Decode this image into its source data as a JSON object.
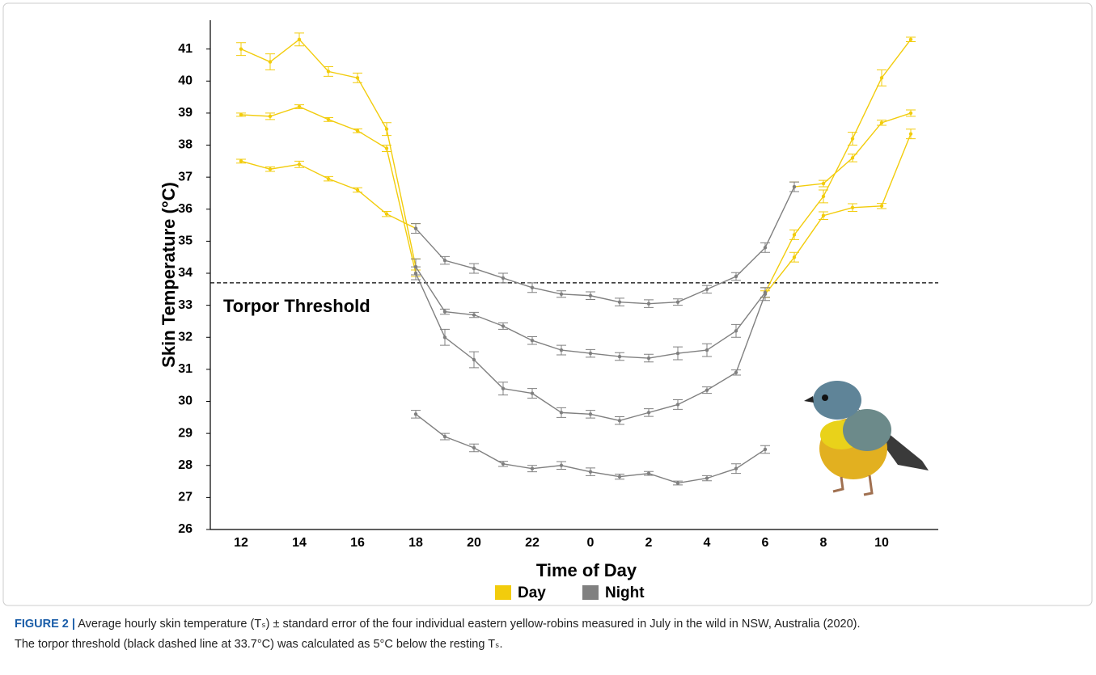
{
  "chart_data": {
    "type": "line",
    "xlabel": "Time of Day",
    "ylabel": "Skin Temperature (°C)",
    "categories": [
      "12",
      null,
      "14",
      null,
      "16",
      null,
      "18",
      null,
      "20",
      null,
      "22",
      null,
      "0",
      null,
      "2",
      null,
      "4",
      null,
      "6",
      null,
      "8",
      null,
      "10",
      null
    ],
    "ylim": [
      26,
      41.9
    ],
    "yticks": [
      26,
      27,
      28,
      29,
      30,
      31,
      32,
      33,
      34,
      35,
      36,
      37,
      38,
      39,
      40,
      41
    ],
    "threshold": 33.7,
    "threshold_label": "Torpor Threshold",
    "series": [
      {
        "name": "Day",
        "color": "#f2cc0c",
        "lines": [
          {
            "values": [
              41.0,
              40.6,
              41.3,
              40.3,
              40.1,
              38.5,
              34.2,
              null,
              null,
              null,
              null,
              null,
              null,
              null,
              null,
              null,
              null,
              null,
              null,
              null,
              null,
              null,
              null,
              null
            ],
            "errors": [
              0.2,
              0.25,
              0.2,
              0.15,
              0.15,
              0.2,
              0.25,
              null,
              null,
              null,
              null,
              null,
              null,
              null,
              null,
              null,
              null,
              null,
              null,
              null,
              null,
              null,
              null,
              null
            ]
          },
          {
            "values": [
              38.95,
              38.9,
              39.2,
              38.8,
              38.45,
              37.9,
              34.0,
              null,
              null,
              null,
              null,
              null,
              null,
              null,
              null,
              null,
              null,
              null,
              null,
              null,
              null,
              null,
              null,
              null
            ],
            "errors": [
              0.05,
              0.1,
              0.06,
              0.06,
              0.06,
              0.1,
              0.1,
              null,
              null,
              null,
              null,
              null,
              null,
              null,
              null,
              null,
              null,
              null,
              null,
              null,
              null,
              null,
              null,
              null
            ]
          },
          {
            "values": [
              37.5,
              37.25,
              37.4,
              36.95,
              36.6,
              35.85,
              35.4,
              null,
              null,
              null,
              null,
              null,
              null,
              null,
              null,
              null,
              null,
              null,
              null,
              null,
              null,
              null,
              null,
              null
            ],
            "errors": [
              0.06,
              0.07,
              0.1,
              0.07,
              0.07,
              0.08,
              0.15,
              null,
              null,
              null,
              null,
              null,
              null,
              null,
              null,
              null,
              null,
              null,
              null,
              null,
              null,
              null,
              null,
              null
            ]
          },
          {
            "values": [
              null,
              null,
              null,
              null,
              null,
              null,
              null,
              null,
              null,
              null,
              null,
              null,
              null,
              null,
              null,
              null,
              null,
              null,
              null,
              36.7,
              36.8,
              37.6,
              38.7,
              39.0
            ],
            "errors": [
              null,
              null,
              null,
              null,
              null,
              null,
              null,
              null,
              null,
              null,
              null,
              null,
              null,
              null,
              null,
              null,
              null,
              null,
              null,
              0.15,
              0.1,
              0.12,
              0.08,
              0.1
            ]
          },
          {
            "values": [
              null,
              null,
              null,
              null,
              null,
              null,
              null,
              null,
              null,
              null,
              null,
              null,
              null,
              null,
              null,
              null,
              null,
              null,
              33.4,
              35.2,
              36.4,
              38.2,
              40.1,
              41.3
            ],
            "errors": [
              null,
              null,
              null,
              null,
              null,
              null,
              null,
              null,
              null,
              null,
              null,
              null,
              null,
              null,
              null,
              null,
              null,
              null,
              0.15,
              0.15,
              0.2,
              0.2,
              0.25,
              0.07
            ]
          },
          {
            "values": [
              null,
              null,
              null,
              null,
              null,
              null,
              null,
              null,
              null,
              null,
              null,
              null,
              null,
              null,
              null,
              null,
              null,
              null,
              33.35,
              34.5,
              35.8,
              36.05,
              36.1,
              38.35
            ],
            "errors": [
              null,
              null,
              null,
              null,
              null,
              null,
              null,
              null,
              null,
              null,
              null,
              null,
              null,
              null,
              null,
              null,
              null,
              null,
              0.1,
              0.15,
              0.12,
              0.12,
              0.08,
              0.15
            ]
          }
        ]
      },
      {
        "name": "Night",
        "color": "#808080",
        "lines": [
          {
            "values": [
              null,
              null,
              null,
              null,
              null,
              null,
              35.4,
              34.4,
              34.15,
              33.85,
              33.55,
              33.35,
              33.3,
              33.1,
              33.05,
              33.1,
              33.5,
              33.9,
              34.8,
              36.7,
              null,
              null,
              null,
              null
            ],
            "errors": [
              null,
              null,
              null,
              null,
              null,
              null,
              0.15,
              0.12,
              0.15,
              0.15,
              0.15,
              0.1,
              0.12,
              0.12,
              0.12,
              0.1,
              0.12,
              0.12,
              0.15,
              0.15,
              null,
              null,
              null,
              null
            ]
          },
          {
            "values": [
              null,
              null,
              null,
              null,
              null,
              null,
              34.2,
              32.8,
              32.7,
              32.35,
              31.9,
              31.6,
              31.5,
              31.4,
              31.35,
              31.5,
              31.6,
              32.2,
              33.4,
              null,
              null,
              null,
              null,
              null
            ],
            "errors": [
              null,
              null,
              null,
              null,
              null,
              null,
              0.25,
              0.08,
              0.08,
              0.1,
              0.12,
              0.15,
              0.12,
              0.12,
              0.12,
              0.2,
              0.2,
              0.2,
              0.15,
              null,
              null,
              null,
              null,
              null
            ]
          },
          {
            "values": [
              null,
              null,
              null,
              null,
              null,
              null,
              34.0,
              32.0,
              31.3,
              30.4,
              30.25,
              29.65,
              29.6,
              29.4,
              29.65,
              29.9,
              30.35,
              30.9,
              33.35,
              null,
              null,
              null,
              null,
              null
            ],
            "errors": [
              null,
              null,
              null,
              null,
              null,
              null,
              0.2,
              0.25,
              0.25,
              0.2,
              0.15,
              0.15,
              0.12,
              0.12,
              0.12,
              0.15,
              0.1,
              0.08,
              0.2,
              null,
              null,
              null,
              null,
              null
            ]
          },
          {
            "values": [
              null,
              null,
              null,
              null,
              null,
              null,
              29.6,
              28.9,
              28.55,
              28.05,
              27.9,
              28.0,
              27.8,
              27.65,
              27.75,
              27.45,
              27.6,
              27.9,
              28.5,
              null,
              null,
              null,
              null,
              null
            ],
            "errors": [
              null,
              null,
              null,
              null,
              null,
              null,
              0.12,
              0.1,
              0.12,
              0.08,
              0.1,
              0.12,
              0.12,
              0.08,
              0.06,
              0.06,
              0.08,
              0.15,
              0.12,
              null,
              null,
              null,
              null,
              null
            ]
          }
        ]
      }
    ],
    "caption": {
      "label": "FIGURE 2 |",
      "line1": " Average hourly skin temperature (Tₛ) ± standard error of the four individual eastern yellow-robins measured in July in the wild in NSW, Australia (2020).",
      "line2": "The torpor threshold (black dashed line at 33.7°C) was calculated as 5°C below the resting Tₛ."
    }
  }
}
